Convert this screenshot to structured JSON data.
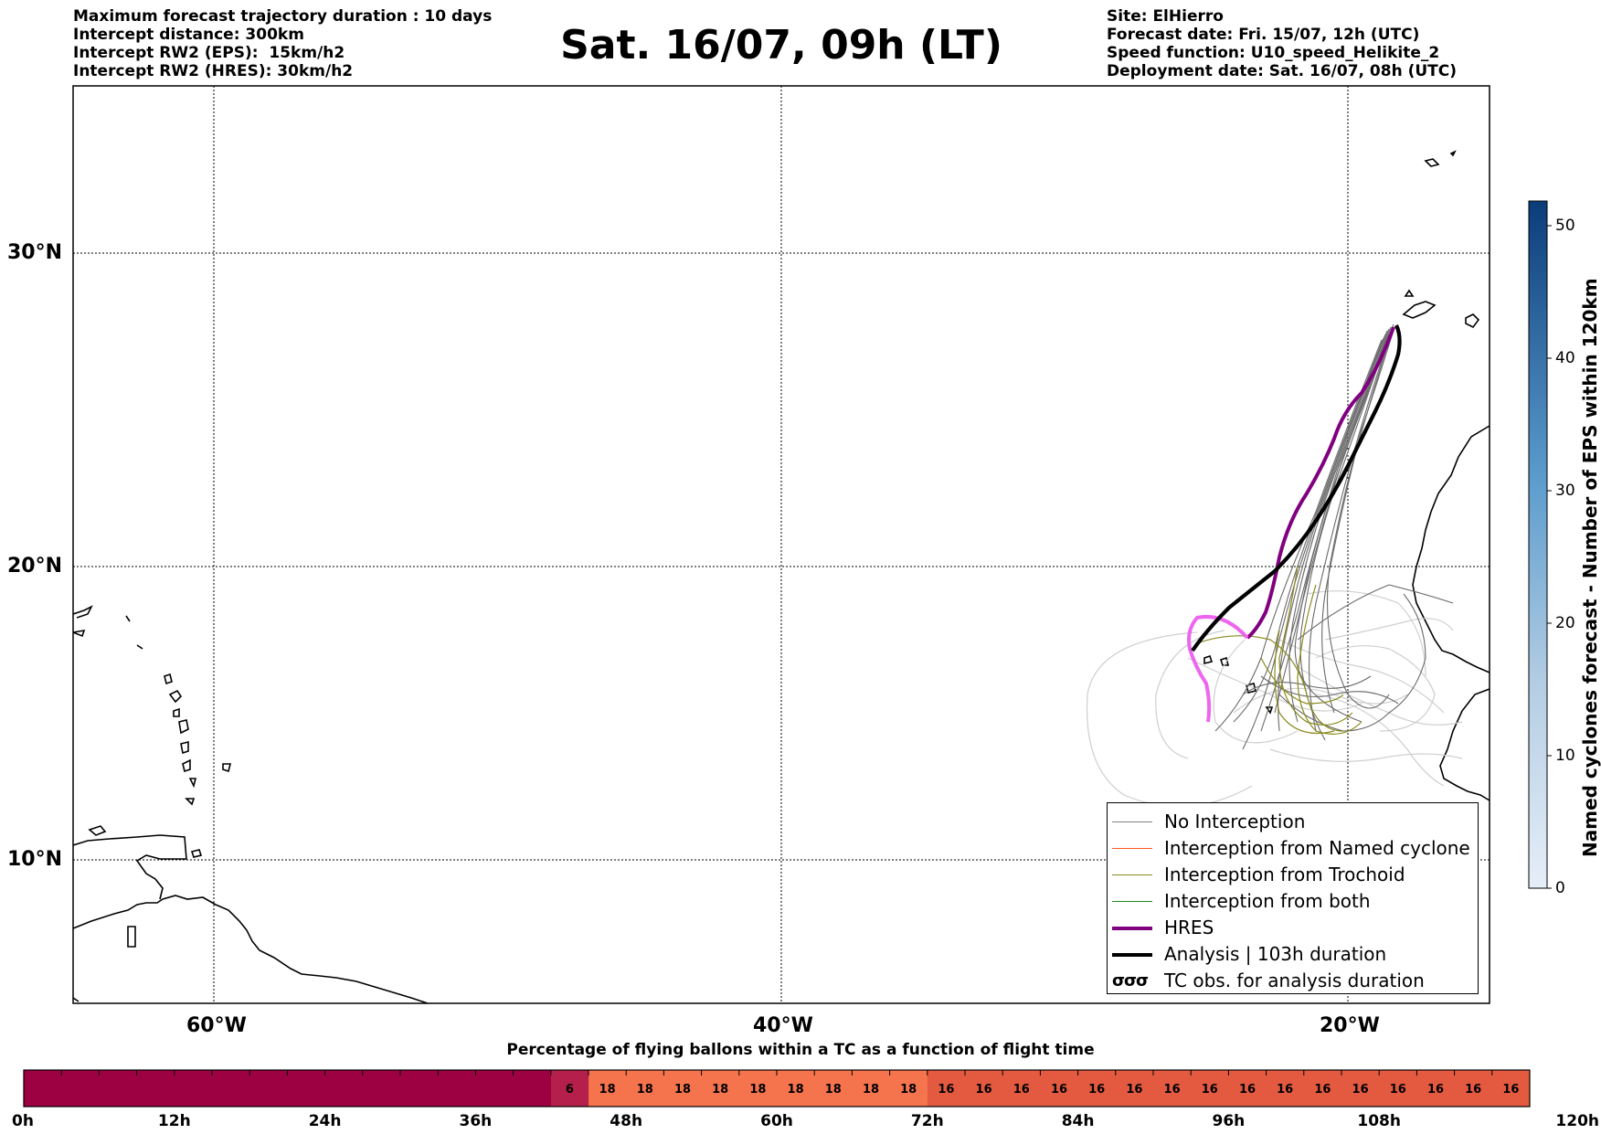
{
  "header": {
    "left_lines": [
      "Maximum forecast trajectory duration : 10 days",
      "Intercept distance: 300km",
      "Intercept RW2 (EPS):  15km/h2",
      "Intercept RW2 (HRES): 30km/h2"
    ],
    "title": "Sat. 16/07, 09h (LT)",
    "right_lines": [
      "Site: ElHierro",
      "Forecast date: Fri. 15/07, 12h (UTC)",
      "Speed function: U10_speed_Helikite_2",
      "Deployment date: Sat. 16/07, 08h (UTC)"
    ]
  },
  "map": {
    "lat_labels": [
      "30°N",
      "20°N",
      "10°N"
    ],
    "lon_labels": [
      "60°W",
      "40°W",
      "20°W"
    ]
  },
  "legend": {
    "items": [
      {
        "label": "No Interception",
        "color": "#808080",
        "style": "thin"
      },
      {
        "label": "Interception from Named cyclone",
        "color": "#ff5a1e",
        "style": "thin"
      },
      {
        "label": "Interception from Trochoid",
        "color": "#8a8a1e",
        "style": "thin"
      },
      {
        "label": "Interception from both",
        "color": "#1e8a1e",
        "style": "thin"
      },
      {
        "label": "HRES",
        "color": "#800080",
        "style": "thick"
      },
      {
        "label": "Analysis | 103h duration",
        "color": "#000000",
        "style": "thick"
      },
      {
        "label": "TC obs. for analysis duration",
        "color": "#000000",
        "style": "symbol"
      }
    ]
  },
  "colorbar": {
    "label": "Named cyclones forecast - Number of EPS within 120km",
    "ticks": [
      "0",
      "10",
      "20",
      "30",
      "40",
      "50"
    ]
  },
  "timebar": {
    "title": "Percentage of flying ballons within a TC as a function of flight time",
    "time_labels": [
      "0h",
      "12h",
      "24h",
      "36h",
      "48h",
      "60h",
      "72h",
      "84h",
      "96h",
      "108h",
      "120h"
    ],
    "cell_values": [
      "",
      "",
      "",
      "",
      "",
      "",
      "",
      "",
      "",
      "",
      "",
      "",
      "",
      "",
      "6",
      "18",
      "18",
      "18",
      "18",
      "18",
      "18",
      "18",
      "18",
      "18",
      "16",
      "16",
      "16",
      "16",
      "16",
      "16",
      "16",
      "16",
      "16",
      "16",
      "16",
      "16",
      "16",
      "16",
      "16",
      "16"
    ]
  }
}
